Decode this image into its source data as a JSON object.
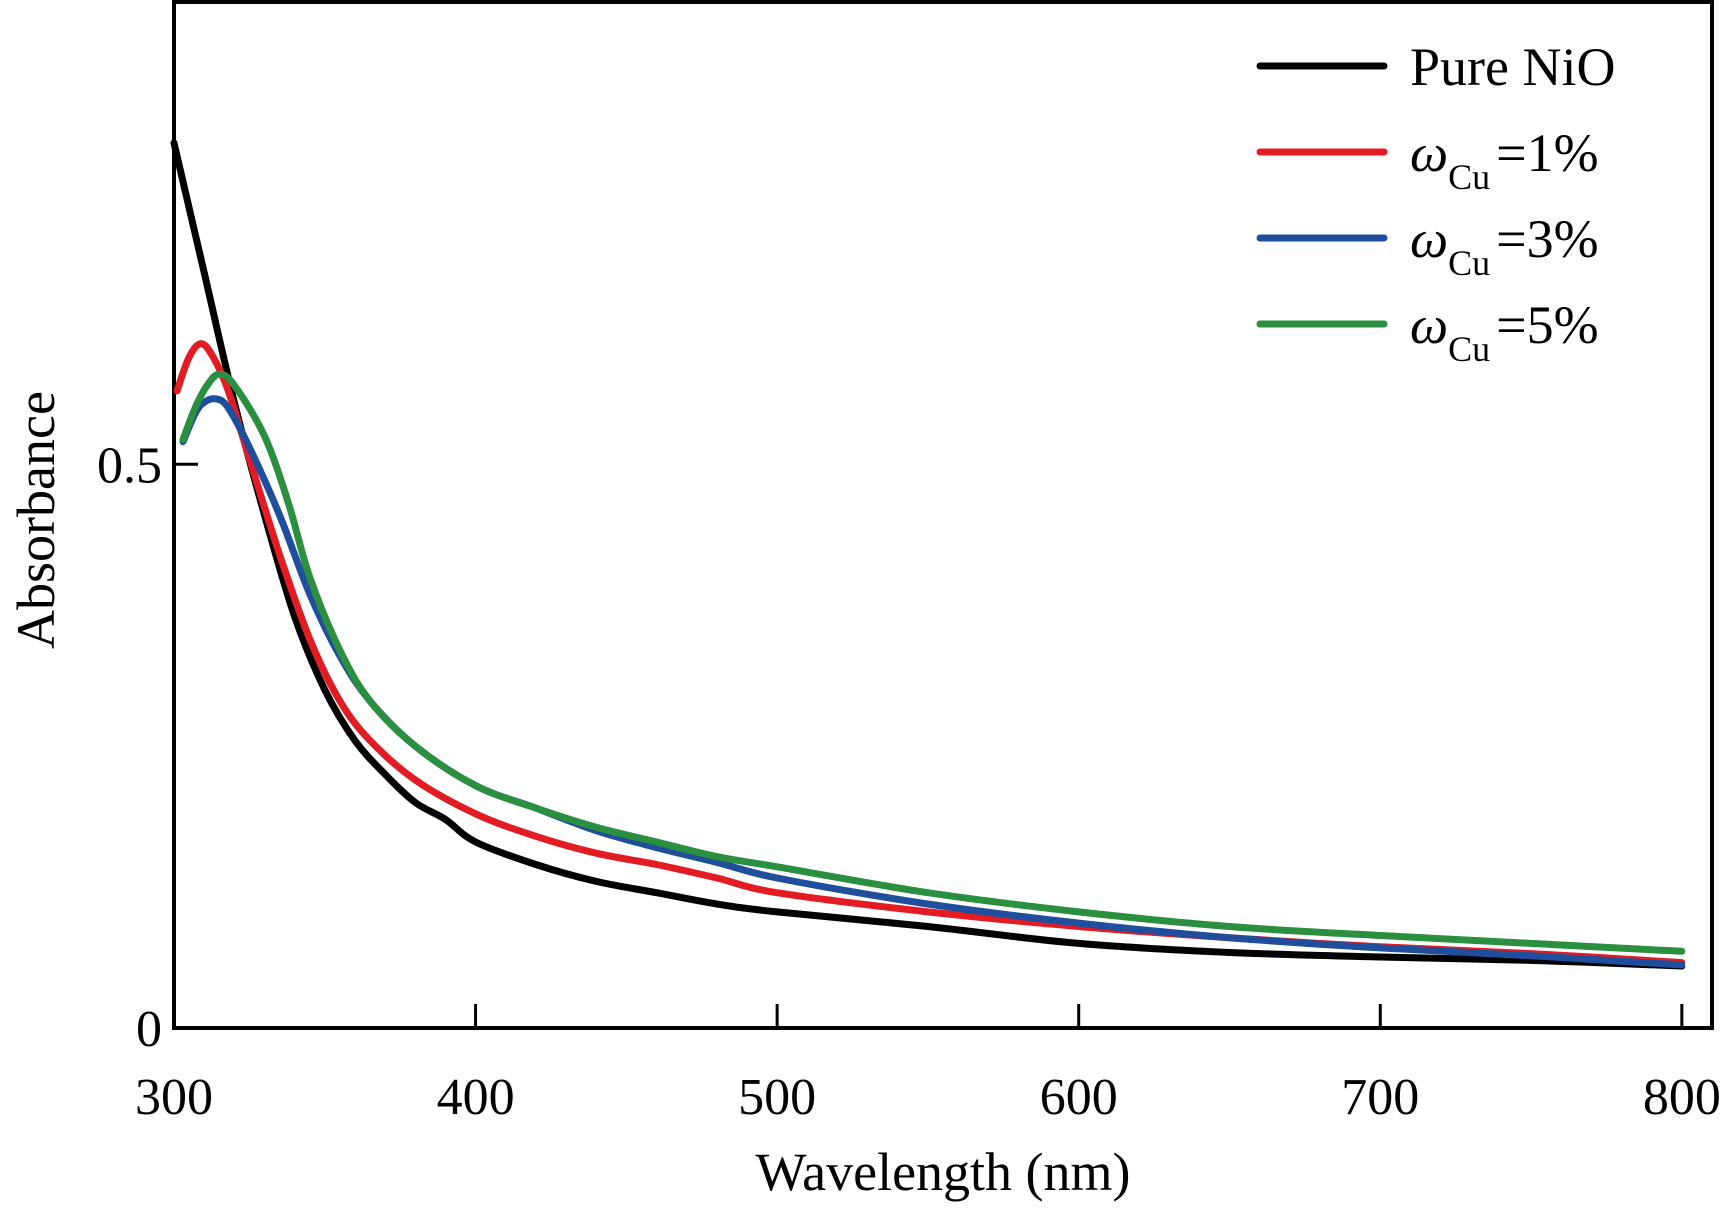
{
  "chart_data": {
    "type": "line",
    "title": "",
    "xlabel": "Wavelength (nm)",
    "ylabel": "Absorbance",
    "xlim": [
      300,
      810
    ],
    "ylim": [
      0,
      0.91
    ],
    "x_ticks": [
      300,
      400,
      500,
      600,
      700,
      800
    ],
    "x_tick_labels": [
      "300",
      "400",
      "500",
      "600",
      "700",
      "800"
    ],
    "y_ticks": [
      0,
      0.5
    ],
    "y_tick_labels": [
      "0",
      "0.5"
    ],
    "grid": false,
    "legend_position": "top-right",
    "series": [
      {
        "name": "Pure NiO",
        "legend_symbol": "",
        "legend_subscript": "",
        "legend_suffix": "",
        "color": "#000000",
        "x": [
          300,
          310,
          320,
          330,
          340,
          350,
          360,
          370,
          380,
          390,
          400,
          420,
          440,
          460,
          480,
          500,
          550,
          600,
          650,
          700,
          750,
          800
        ],
        "y": [
          0.785,
          0.67,
          0.555,
          0.455,
          0.365,
          0.3,
          0.255,
          0.225,
          0.2,
          0.185,
          0.165,
          0.145,
          0.13,
          0.12,
          0.11,
          0.103,
          0.09,
          0.075,
          0.067,
          0.063,
          0.06,
          0.055
        ]
      },
      {
        "name": "",
        "legend_symbol": "ω",
        "legend_subscript": "Cu",
        "legend_suffix": "=1%",
        "color": "#e31b23",
        "x": [
          301,
          305,
          309,
          313,
          318,
          325,
          335,
          345,
          355,
          365,
          380,
          400,
          420,
          440,
          460,
          480,
          500,
          550,
          600,
          650,
          700,
          750,
          800
        ],
        "y": [
          0.565,
          0.595,
          0.607,
          0.595,
          0.565,
          0.505,
          0.42,
          0.345,
          0.29,
          0.255,
          0.22,
          0.19,
          0.17,
          0.155,
          0.145,
          0.133,
          0.12,
          0.103,
          0.09,
          0.08,
          0.072,
          0.066,
          0.058
        ]
      },
      {
        "name": "",
        "legend_symbol": "ω",
        "legend_subscript": "Cu",
        "legend_suffix": "=3%",
        "color": "#1f4e9c",
        "x": [
          303,
          307,
          310,
          314,
          318,
          325,
          335,
          345,
          355,
          365,
          380,
          400,
          420,
          440,
          460,
          480,
          500,
          550,
          600,
          650,
          700,
          750,
          800
        ],
        "y": [
          0.52,
          0.545,
          0.555,
          0.558,
          0.55,
          0.515,
          0.455,
          0.385,
          0.33,
          0.29,
          0.25,
          0.215,
          0.195,
          0.175,
          0.16,
          0.147,
          0.133,
          0.11,
          0.093,
          0.08,
          0.071,
          0.064,
          0.056
        ]
      },
      {
        "name": "",
        "legend_symbol": "ω",
        "legend_subscript": "Cu",
        "legend_suffix": "=5%",
        "color": "#2a9040",
        "x": [
          303,
          307,
          311,
          315,
          320,
          330,
          338,
          345,
          355,
          365,
          380,
          400,
          420,
          440,
          460,
          480,
          500,
          550,
          600,
          650,
          700,
          750,
          800
        ],
        "y": [
          0.522,
          0.55,
          0.57,
          0.58,
          0.57,
          0.525,
          0.465,
          0.4,
          0.335,
          0.29,
          0.25,
          0.215,
          0.195,
          0.178,
          0.165,
          0.152,
          0.143,
          0.12,
          0.103,
          0.09,
          0.082,
          0.075,
          0.068
        ]
      }
    ]
  }
}
